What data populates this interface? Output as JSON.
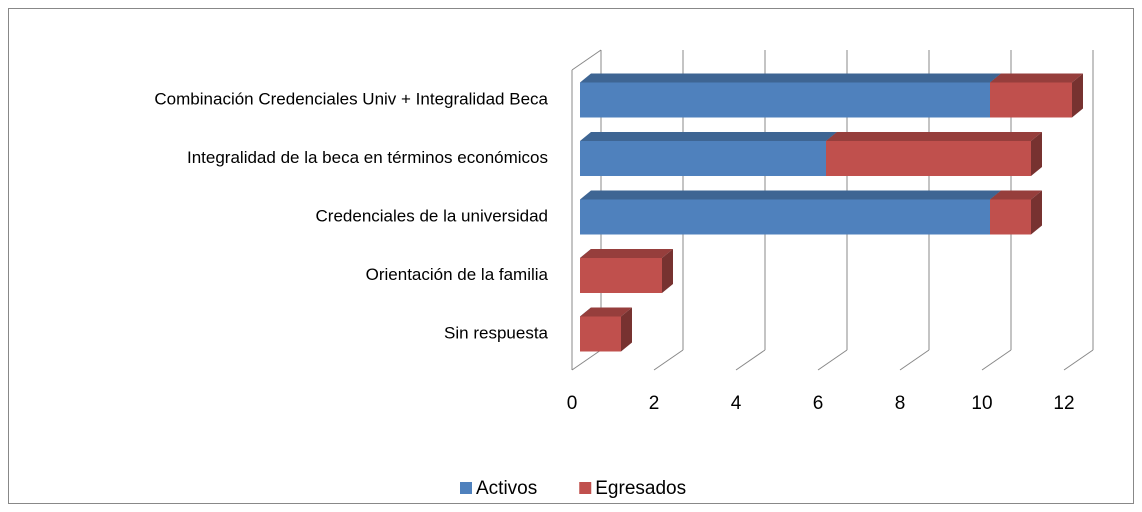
{
  "chart_data": {
    "type": "bar",
    "orientation": "horizontal",
    "stacked": true,
    "three_d": true,
    "categories": [
      "Combinación Credenciales Univ + Integralidad Beca",
      "Integralidad de la beca en términos económicos",
      "Credenciales de la universidad",
      "Orientación de la familia",
      "Sin respuesta"
    ],
    "series": [
      {
        "name": "Activos",
        "color": "#4f81bd",
        "values": [
          10,
          6,
          10,
          0,
          0
        ]
      },
      {
        "name": "Egresados",
        "color": "#c0504d",
        "values": [
          2,
          5,
          1,
          2,
          1
        ]
      }
    ],
    "xlim": [
      0,
      12
    ],
    "xticks": [
      0,
      2,
      4,
      6,
      8,
      10,
      12
    ],
    "grid": true,
    "legend": "bottom"
  }
}
